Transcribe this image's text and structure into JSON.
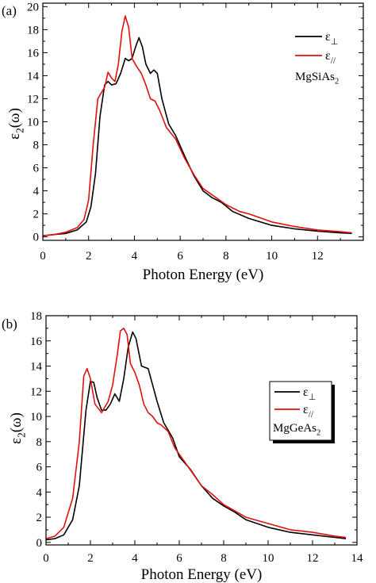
{
  "chart_data": [
    {
      "type": "line",
      "panel_label": "(a)",
      "material": "MgSiAs",
      "material_sub": "2",
      "xlabel": "Photon Energy (eV)",
      "ylabel_main": "ε",
      "ylabel_sub": "2",
      "ylabel_tail": "(ω)",
      "xlim": [
        0,
        14
      ],
      "ylim": [
        -0.3,
        20.3
      ],
      "xticks": [
        0,
        2,
        4,
        6,
        8,
        10,
        12
      ],
      "yticks": [
        0,
        2,
        4,
        6,
        8,
        10,
        12,
        14,
        16,
        18,
        20
      ],
      "legend_position": "top-right",
      "series": [
        {
          "name": "ε",
          "name_sub": "⊥",
          "color": "#000000",
          "x": [
            0,
            0.5,
            1.0,
            1.5,
            1.9,
            2.1,
            2.3,
            2.5,
            2.7,
            2.85,
            3.0,
            3.2,
            3.4,
            3.6,
            3.75,
            3.9,
            4.05,
            4.2,
            4.35,
            4.5,
            4.7,
            4.85,
            5.0,
            5.2,
            5.5,
            5.8,
            6.2,
            6.6,
            7.0,
            7.4,
            7.8,
            8.3,
            9.0,
            10.0,
            11.0,
            12.0,
            13.0,
            13.5
          ],
          "y": [
            0.1,
            0.2,
            0.3,
            0.6,
            1.3,
            2.6,
            5.5,
            10.5,
            13.2,
            13.5,
            13.2,
            13.3,
            14.2,
            15.5,
            15.3,
            15.5,
            16.5,
            17.3,
            16.5,
            15.0,
            14.2,
            14.5,
            14.2,
            12.0,
            9.8,
            8.8,
            7.0,
            5.3,
            4.0,
            3.4,
            3.0,
            2.2,
            1.6,
            1.0,
            0.7,
            0.5,
            0.35,
            0.3
          ]
        },
        {
          "name": "ε",
          "name_sub": "//",
          "color": "#e01010",
          "x": [
            0,
            0.5,
            1.0,
            1.5,
            1.8,
            2.0,
            2.2,
            2.4,
            2.55,
            2.7,
            2.85,
            3.0,
            3.15,
            3.3,
            3.45,
            3.6,
            3.75,
            3.9,
            4.1,
            4.3,
            4.5,
            4.7,
            4.9,
            5.1,
            5.4,
            5.8,
            6.2,
            6.6,
            7.0,
            7.5,
            8.0,
            8.6,
            9.0,
            10.0,
            11.0,
            12.0,
            13.0,
            13.5
          ],
          "y": [
            0.1,
            0.2,
            0.4,
            0.8,
            1.5,
            3.2,
            8.0,
            12.0,
            12.5,
            13.0,
            14.3,
            13.8,
            13.5,
            15.0,
            17.8,
            19.2,
            18.2,
            15.5,
            14.8,
            14.2,
            13.2,
            12.0,
            11.8,
            11.0,
            9.5,
            8.5,
            6.8,
            5.4,
            4.2,
            3.5,
            2.8,
            2.2,
            2.0,
            1.3,
            0.9,
            0.6,
            0.45,
            0.35
          ]
        }
      ]
    },
    {
      "type": "line",
      "panel_label": "(b)",
      "material": "MgGeAs",
      "material_sub": "2",
      "xlabel": "Photon Energy (eV)",
      "ylabel_main": "ε",
      "ylabel_sub": "2",
      "ylabel_tail": "(ω)",
      "xlim": [
        0,
        14
      ],
      "ylim": [
        -0.2,
        18
      ],
      "xticks": [
        0,
        2,
        4,
        6,
        8,
        10,
        12,
        14
      ],
      "yticks": [
        0,
        2,
        4,
        6,
        8,
        10,
        12,
        14,
        16,
        18
      ],
      "legend_position": "center-right",
      "series": [
        {
          "name": "ε",
          "name_sub": "⊥",
          "color": "#000000",
          "x": [
            0,
            0.4,
            0.8,
            1.2,
            1.5,
            1.8,
            2.0,
            2.15,
            2.3,
            2.5,
            2.7,
            2.9,
            3.1,
            3.3,
            3.5,
            3.7,
            3.9,
            4.05,
            4.3,
            4.6,
            4.8,
            5.0,
            5.3,
            5.7,
            6.0,
            6.5,
            7.0,
            7.5,
            8.0,
            8.5,
            9.0,
            10.0,
            11.0,
            12.0,
            13.0,
            13.5
          ],
          "y": [
            0.2,
            0.3,
            0.6,
            1.8,
            4.5,
            10.5,
            12.8,
            12.7,
            11.5,
            10.5,
            10.5,
            11.0,
            11.8,
            11.2,
            13.0,
            15.5,
            16.7,
            16.2,
            14.0,
            13.8,
            12.5,
            11.2,
            9.5,
            8.3,
            6.8,
            5.8,
            4.5,
            3.5,
            2.9,
            2.4,
            1.8,
            1.2,
            0.8,
            0.6,
            0.4,
            0.3
          ]
        },
        {
          "name": "ε",
          "name_sub": "//",
          "color": "#e01010",
          "x": [
            0,
            0.4,
            0.8,
            1.2,
            1.5,
            1.7,
            1.85,
            2.0,
            2.2,
            2.5,
            2.8,
            3.0,
            3.2,
            3.35,
            3.5,
            3.65,
            3.8,
            4.0,
            4.2,
            4.4,
            4.6,
            4.8,
            5.0,
            5.2,
            5.5,
            5.8,
            6.2,
            6.6,
            7.0,
            7.5,
            8.0,
            8.5,
            9.0,
            10.0,
            11.0,
            12.0,
            13.0,
            13.5
          ],
          "y": [
            0.3,
            0.5,
            1.2,
            3.5,
            8.0,
            13.2,
            13.8,
            13.0,
            11.0,
            10.3,
            11.2,
            12.5,
            14.8,
            16.8,
            17.0,
            16.5,
            14.2,
            13.5,
            12.5,
            11.0,
            10.3,
            10.0,
            9.5,
            9.3,
            8.8,
            7.5,
            6.5,
            5.5,
            4.5,
            3.8,
            3.0,
            2.5,
            2.0,
            1.5,
            1.0,
            0.8,
            0.5,
            0.4
          ]
        }
      ]
    }
  ]
}
